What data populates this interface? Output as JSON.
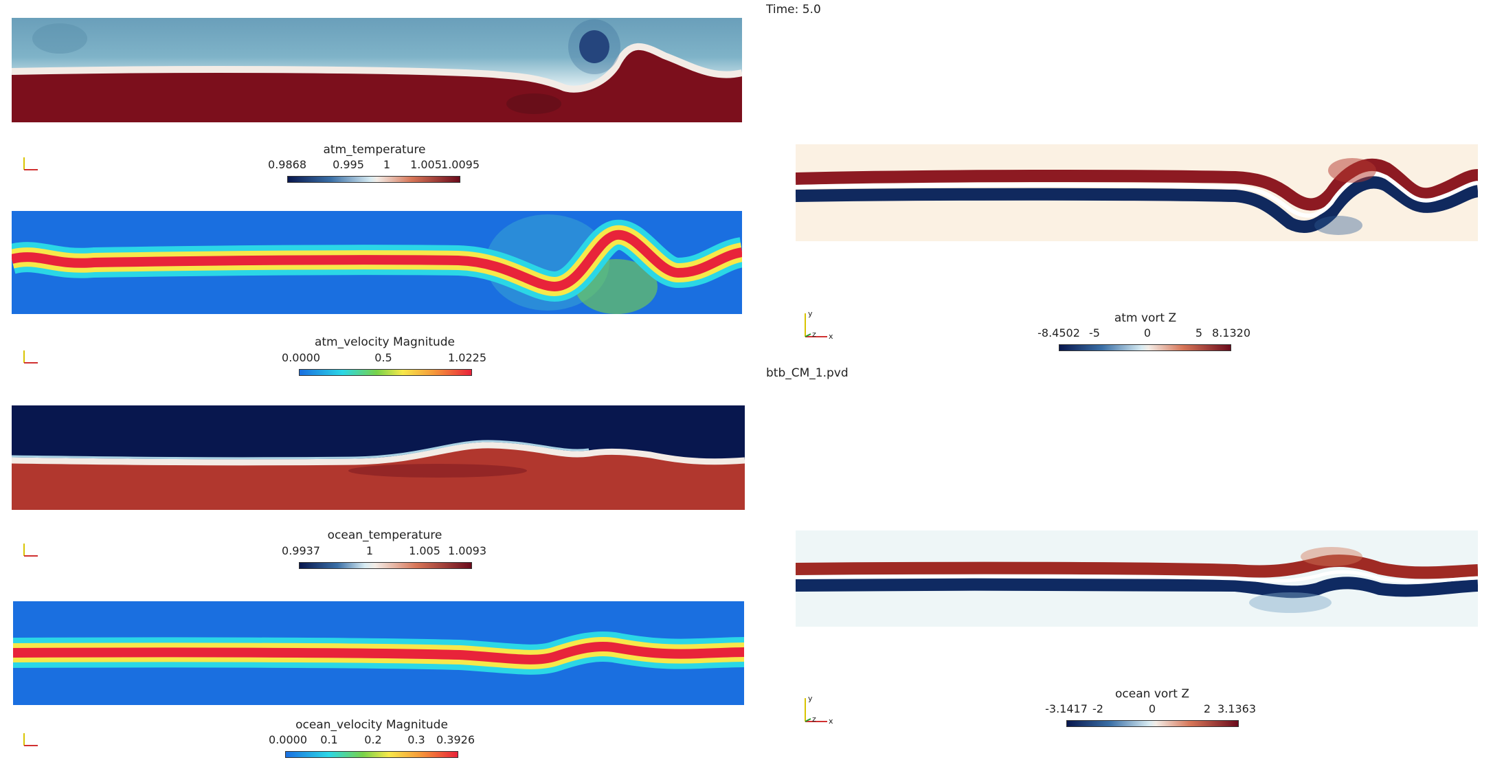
{
  "header": {
    "time_label": "Time: 5.0",
    "file_label": "btb_CM_1.pvd"
  },
  "colors": {
    "cool_warm_dark_blue": "#08174e",
    "cool_warm_light": "#f7f2ea",
    "cool_warm_dark_red": "#6b0b1c",
    "jet_blue": "#1a6fe0",
    "jet_cyan": "#2bd7e6",
    "jet_green": "#78d24a",
    "jet_yellow": "#f7e84a",
    "jet_red": "#e8233a"
  },
  "panels": {
    "atm_temperature": {
      "title": "atm_temperature",
      "ticks": [
        "0.9868",
        "0.995",
        "1",
        "1.005",
        "1.0095"
      ]
    },
    "atm_velocity": {
      "title": "atm_velocity Magnitude",
      "ticks": [
        "0.0000",
        "0.5",
        "1.0225"
      ]
    },
    "ocean_temperature": {
      "title": "ocean_temperature",
      "ticks": [
        "0.9937",
        "1",
        "1.005",
        "1.0093"
      ]
    },
    "ocean_velocity": {
      "title": "ocean_velocity Magnitude",
      "ticks": [
        "0.0000",
        "0.1",
        "0.2",
        "0.3",
        "0.3926"
      ]
    },
    "atm_vort": {
      "title": "atm vort Z",
      "ticks": [
        "-8.4502",
        "-5",
        "0",
        "5",
        "8.1320"
      ]
    },
    "ocean_vort": {
      "title": "ocean vort Z",
      "ticks": [
        "-3.1417",
        "-2",
        "0",
        "2",
        "3.1363"
      ]
    }
  },
  "axis_labels": {
    "x": "x",
    "y": "y",
    "z": "z"
  }
}
